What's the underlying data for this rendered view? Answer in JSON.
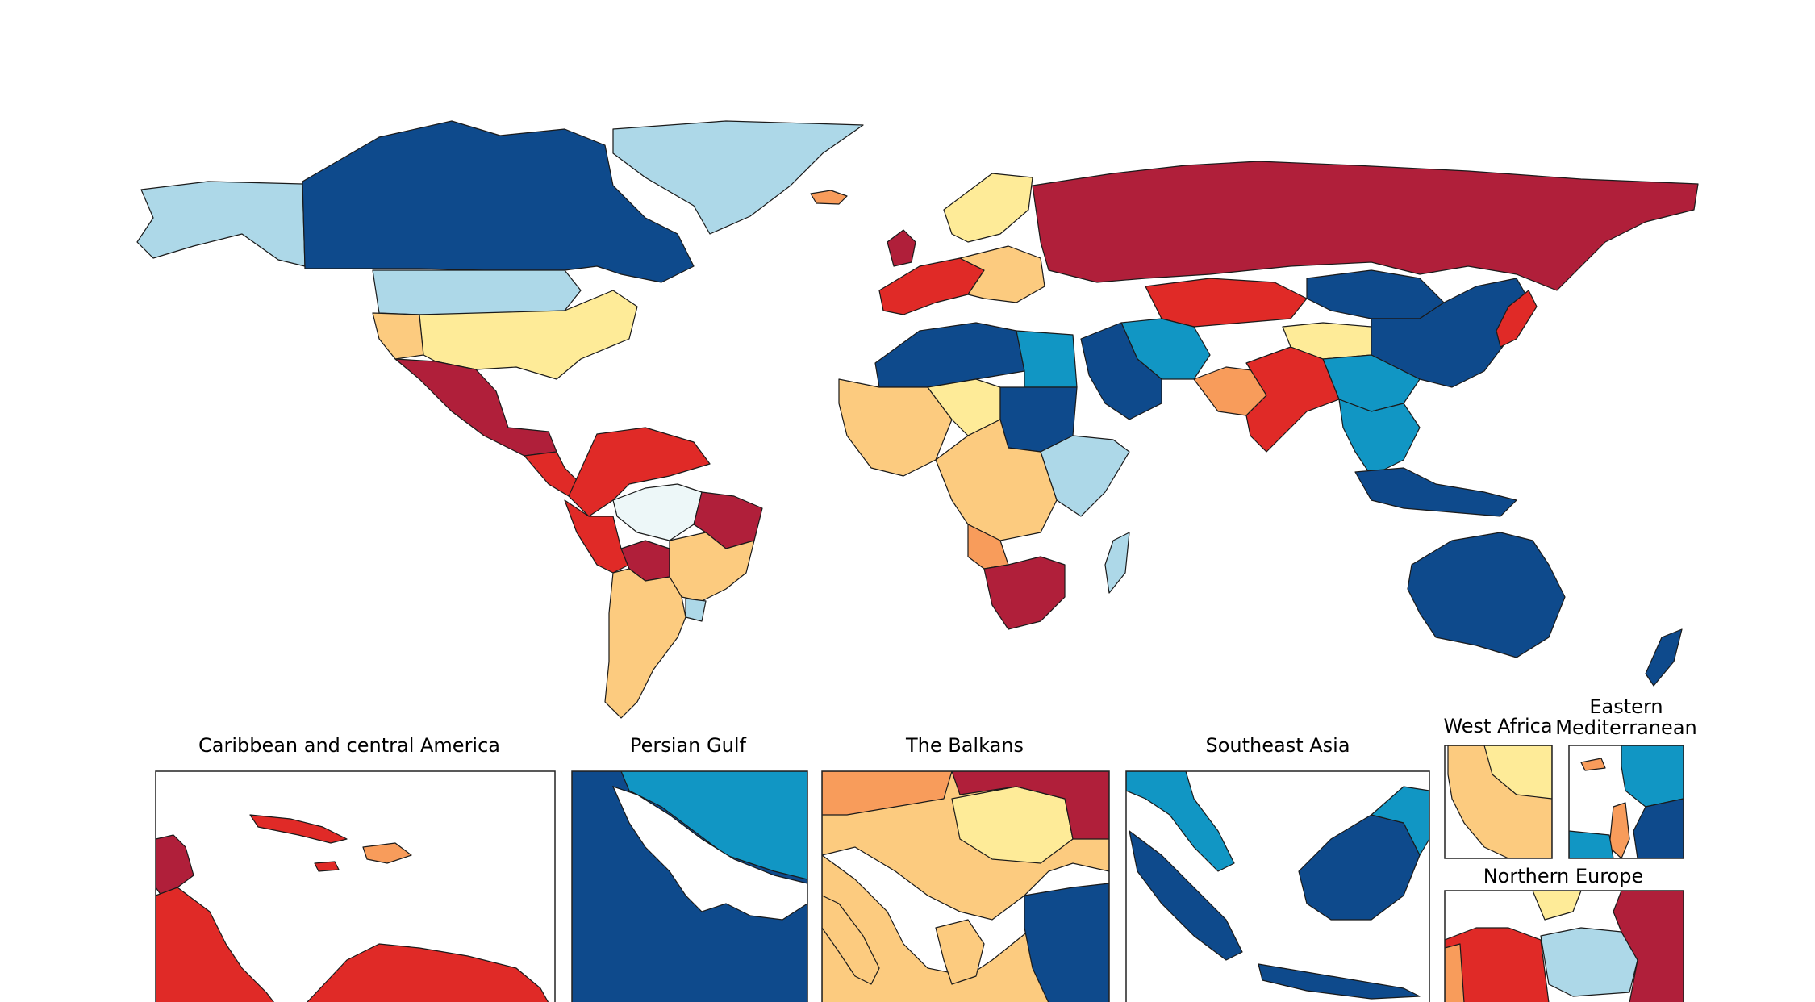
{
  "palette": {
    "dark_red": "#b01f3a",
    "red": "#e02a27",
    "dark_orange": "#ef6c3f",
    "orange": "#f89c5b",
    "light_orange": "#fccb7f",
    "yellow": "#feeb98",
    "pale": "#edf7f8",
    "light_blue": "#add8e8",
    "blue": "#1196c4",
    "dark_blue": "#0e4a8c"
  },
  "insets": [
    {
      "id": "caribbean",
      "title": "Caribbean and central America"
    },
    {
      "id": "persian-gulf",
      "title": "Persian Gulf"
    },
    {
      "id": "balkans",
      "title": "The Balkans"
    },
    {
      "id": "southeast-asia",
      "title": "Southeast Asia"
    },
    {
      "id": "west-africa",
      "title": "West Africa"
    },
    {
      "id": "eastern-med",
      "title_lines": [
        "Eastern",
        "Mediterranean"
      ]
    },
    {
      "id": "northern-europe",
      "title": "Northern Europe"
    }
  ],
  "regions": [
    {
      "name": "alaska",
      "cls": "light_blue"
    },
    {
      "name": "canada",
      "cls": "dark_blue"
    },
    {
      "name": "greenland",
      "cls": "light_blue"
    },
    {
      "name": "iceland",
      "cls": "orange"
    },
    {
      "name": "usa-north",
      "cls": "light_blue"
    },
    {
      "name": "usa-south",
      "cls": "yellow"
    },
    {
      "name": "usa-west",
      "cls": "light_orange"
    },
    {
      "name": "mexico",
      "cls": "dark_red"
    },
    {
      "name": "central-america",
      "cls": "red"
    },
    {
      "name": "colombia-venezuela",
      "cls": "red"
    },
    {
      "name": "peru",
      "cls": "red"
    },
    {
      "name": "bolivia",
      "cls": "dark_red"
    },
    {
      "name": "brazil-north",
      "cls": "pale"
    },
    {
      "name": "brazil-east",
      "cls": "light_orange"
    },
    {
      "name": "brazil-northeast",
      "cls": "dark_red"
    },
    {
      "name": "argentina-chile",
      "cls": "light_orange"
    },
    {
      "name": "uruguay",
      "cls": "light_blue"
    },
    {
      "name": "uk",
      "cls": "dark_red"
    },
    {
      "name": "scandinavia",
      "cls": "yellow"
    },
    {
      "name": "western-europe",
      "cls": "red"
    },
    {
      "name": "central-europe",
      "cls": "light_orange"
    },
    {
      "name": "russia",
      "cls": "dark_red"
    },
    {
      "name": "north-africa",
      "cls": "dark_blue"
    },
    {
      "name": "egypt",
      "cls": "blue"
    },
    {
      "name": "west-africa",
      "cls": "light_orange"
    },
    {
      "name": "sahel",
      "cls": "yellow"
    },
    {
      "name": "sudan",
      "cls": "dark_blue"
    },
    {
      "name": "east-africa",
      "cls": "light_blue"
    },
    {
      "name": "central-africa",
      "cls": "light_orange"
    },
    {
      "name": "angola",
      "cls": "orange"
    },
    {
      "name": "southern-africa",
      "cls": "dark_red"
    },
    {
      "name": "madagascar",
      "cls": "light_blue"
    },
    {
      "name": "arabia",
      "cls": "dark_blue"
    },
    {
      "name": "iran",
      "cls": "blue"
    },
    {
      "name": "central-asia",
      "cls": "red"
    },
    {
      "name": "mongolia",
      "cls": "dark_blue"
    },
    {
      "name": "tibet",
      "cls": "yellow"
    },
    {
      "name": "china",
      "cls": "dark_blue"
    },
    {
      "name": "south-china",
      "cls": "blue"
    },
    {
      "name": "india",
      "cls": "red"
    },
    {
      "name": "india-west",
      "cls": "orange"
    },
    {
      "name": "southeast-asia",
      "cls": "blue"
    },
    {
      "name": "indonesia",
      "cls": "dark_blue"
    },
    {
      "name": "japan",
      "cls": "red"
    },
    {
      "name": "australia",
      "cls": "dark_blue"
    },
    {
      "name": "new-zealand",
      "cls": "dark_blue"
    }
  ]
}
